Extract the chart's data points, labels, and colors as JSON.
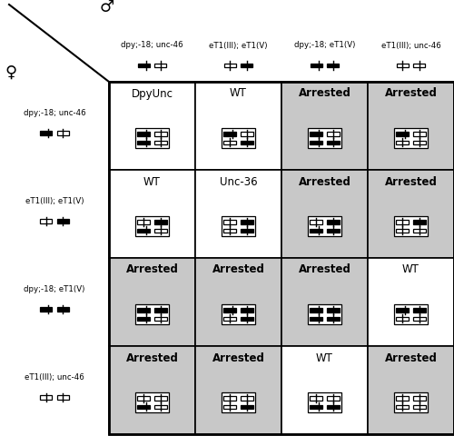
{
  "col_headers": [
    "dpy;-18; unc-46",
    "eT1(III); eT1(V)",
    "dpy;-18; eT1(V)",
    "eT1(III); unc-46"
  ],
  "row_headers": [
    "dpy;-18; unc-46",
    "eT1(III); eT1(V)",
    "dpy;-18; eT1(V)",
    "eT1(III); unc-46"
  ],
  "phenotypes": [
    [
      "DpyUnc",
      "WT",
      "Arrested",
      "Arrested"
    ],
    [
      "WT",
      "Unc-36",
      "Arrested",
      "Arrested"
    ],
    [
      "Arrested",
      "Arrested",
      "Arrested",
      "WT"
    ],
    [
      "Arrested",
      "Arrested",
      "WT",
      "Arrested"
    ]
  ],
  "shaded": [
    [
      false,
      false,
      true,
      true
    ],
    [
      false,
      false,
      true,
      true
    ],
    [
      true,
      true,
      true,
      false
    ],
    [
      true,
      true,
      false,
      true
    ]
  ],
  "bold_phenotype": [
    [
      false,
      false,
      true,
      true
    ],
    [
      false,
      false,
      true,
      true
    ],
    [
      true,
      true,
      true,
      false
    ],
    [
      true,
      true,
      false,
      true
    ]
  ],
  "bg_color_shaded": "#c8c8c8",
  "bg_color_normal": "#ffffff",
  "grid_color": "#000000",
  "text_color": "#000000",
  "figure_bg": "#ffffff",
  "male_symbol": "♂",
  "female_symbol": "♀",
  "chrom_types": {
    "dpy;-18; unc-46": {
      "III_filled": true,
      "III_tick": 0.72,
      "V_filled": false,
      "V_tick": 0.5
    },
    "eT1(III); eT1(V)": {
      "III_filled": false,
      "III_tick": 0.5,
      "V_filled": true,
      "V_tick": 0.5
    },
    "dpy;-18; eT1(V)": {
      "III_filled": true,
      "III_tick": 0.72,
      "V_filled": true,
      "V_tick": 0.5
    },
    "eT1(III); unc-46": {
      "III_filled": false,
      "III_tick": 0.5,
      "V_filled": false,
      "V_tick": 0.5
    }
  }
}
